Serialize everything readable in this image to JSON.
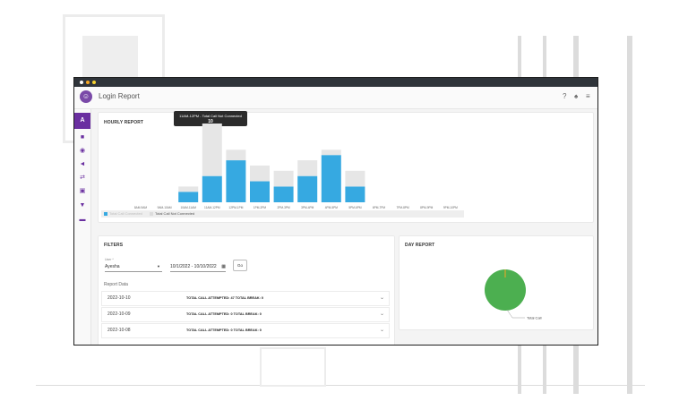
{
  "app": {
    "page_title": "Login Report",
    "sidebar_active_letter": "A",
    "header_icons": [
      "help-icon",
      "bell-icon",
      "menu-icon"
    ]
  },
  "hourly_report": {
    "title": "HOURLY REPORT",
    "tooltip": {
      "line1": "11AM-12PM - Total Call Not Connected",
      "line2": "10"
    },
    "legend": [
      "Total Call Connected",
      "Total Call Not Connected"
    ]
  },
  "chart_data": {
    "type": "bar",
    "stacked": true,
    "categories": [
      "8AM-9AM",
      "9AM-10AM",
      "10AM-11AM",
      "11AM-12PM",
      "12PM-1PM",
      "1PM-2PM",
      "2PM-3PM",
      "3PM-4PM",
      "4PM-5PM",
      "5PM-6PM",
      "6PM-7PM",
      "7PM-8PM",
      "8PM-9PM",
      "9PM-10PM"
    ],
    "series": [
      {
        "name": "Total Call Connected",
        "color": "#36a9e1",
        "values": [
          0,
          0,
          2,
          5,
          8,
          4,
          3,
          5,
          9,
          3,
          0,
          0,
          0,
          0
        ]
      },
      {
        "name": "Total Call Not Connected",
        "color": "#e6e6e6",
        "values": [
          0,
          0,
          1,
          10,
          2,
          3,
          3,
          3,
          1,
          3,
          0,
          0,
          0,
          0
        ]
      }
    ],
    "ylim": [
      0,
      15
    ]
  },
  "filters": {
    "title": "FILTERS",
    "user_label": "User *",
    "user_value": "Ayesha",
    "date_range": "10/1/2022 - 10/10/2022",
    "go_label": "Go",
    "report_data_label": "Report Data",
    "rows": [
      {
        "date": "2022-10-10",
        "detail": "TOTAL CALL ATTEMPTED: 47   TOTAL BREAK: 0"
      },
      {
        "date": "2022-10-09",
        "detail": "TOTAL CALL ATTEMPTED: 0   TOTAL BREAK: 0"
      },
      {
        "date": "2022-10-08",
        "detail": "TOTAL CALL ATTEMPTED: 0   TOTAL BREAK: 0"
      }
    ]
  },
  "day_report": {
    "title": "DAY REPORT",
    "slice_label": "Total Call",
    "pie_color": "#4caf50"
  },
  "colors": {
    "accent": "#6a2fa0",
    "bar_connected": "#36a9e1",
    "bar_not_connected": "#e6e6e6",
    "titlebar": "#2f343a",
    "dot_colors": [
      "#ffffff",
      "#f5a623",
      "#f5d12f"
    ]
  }
}
